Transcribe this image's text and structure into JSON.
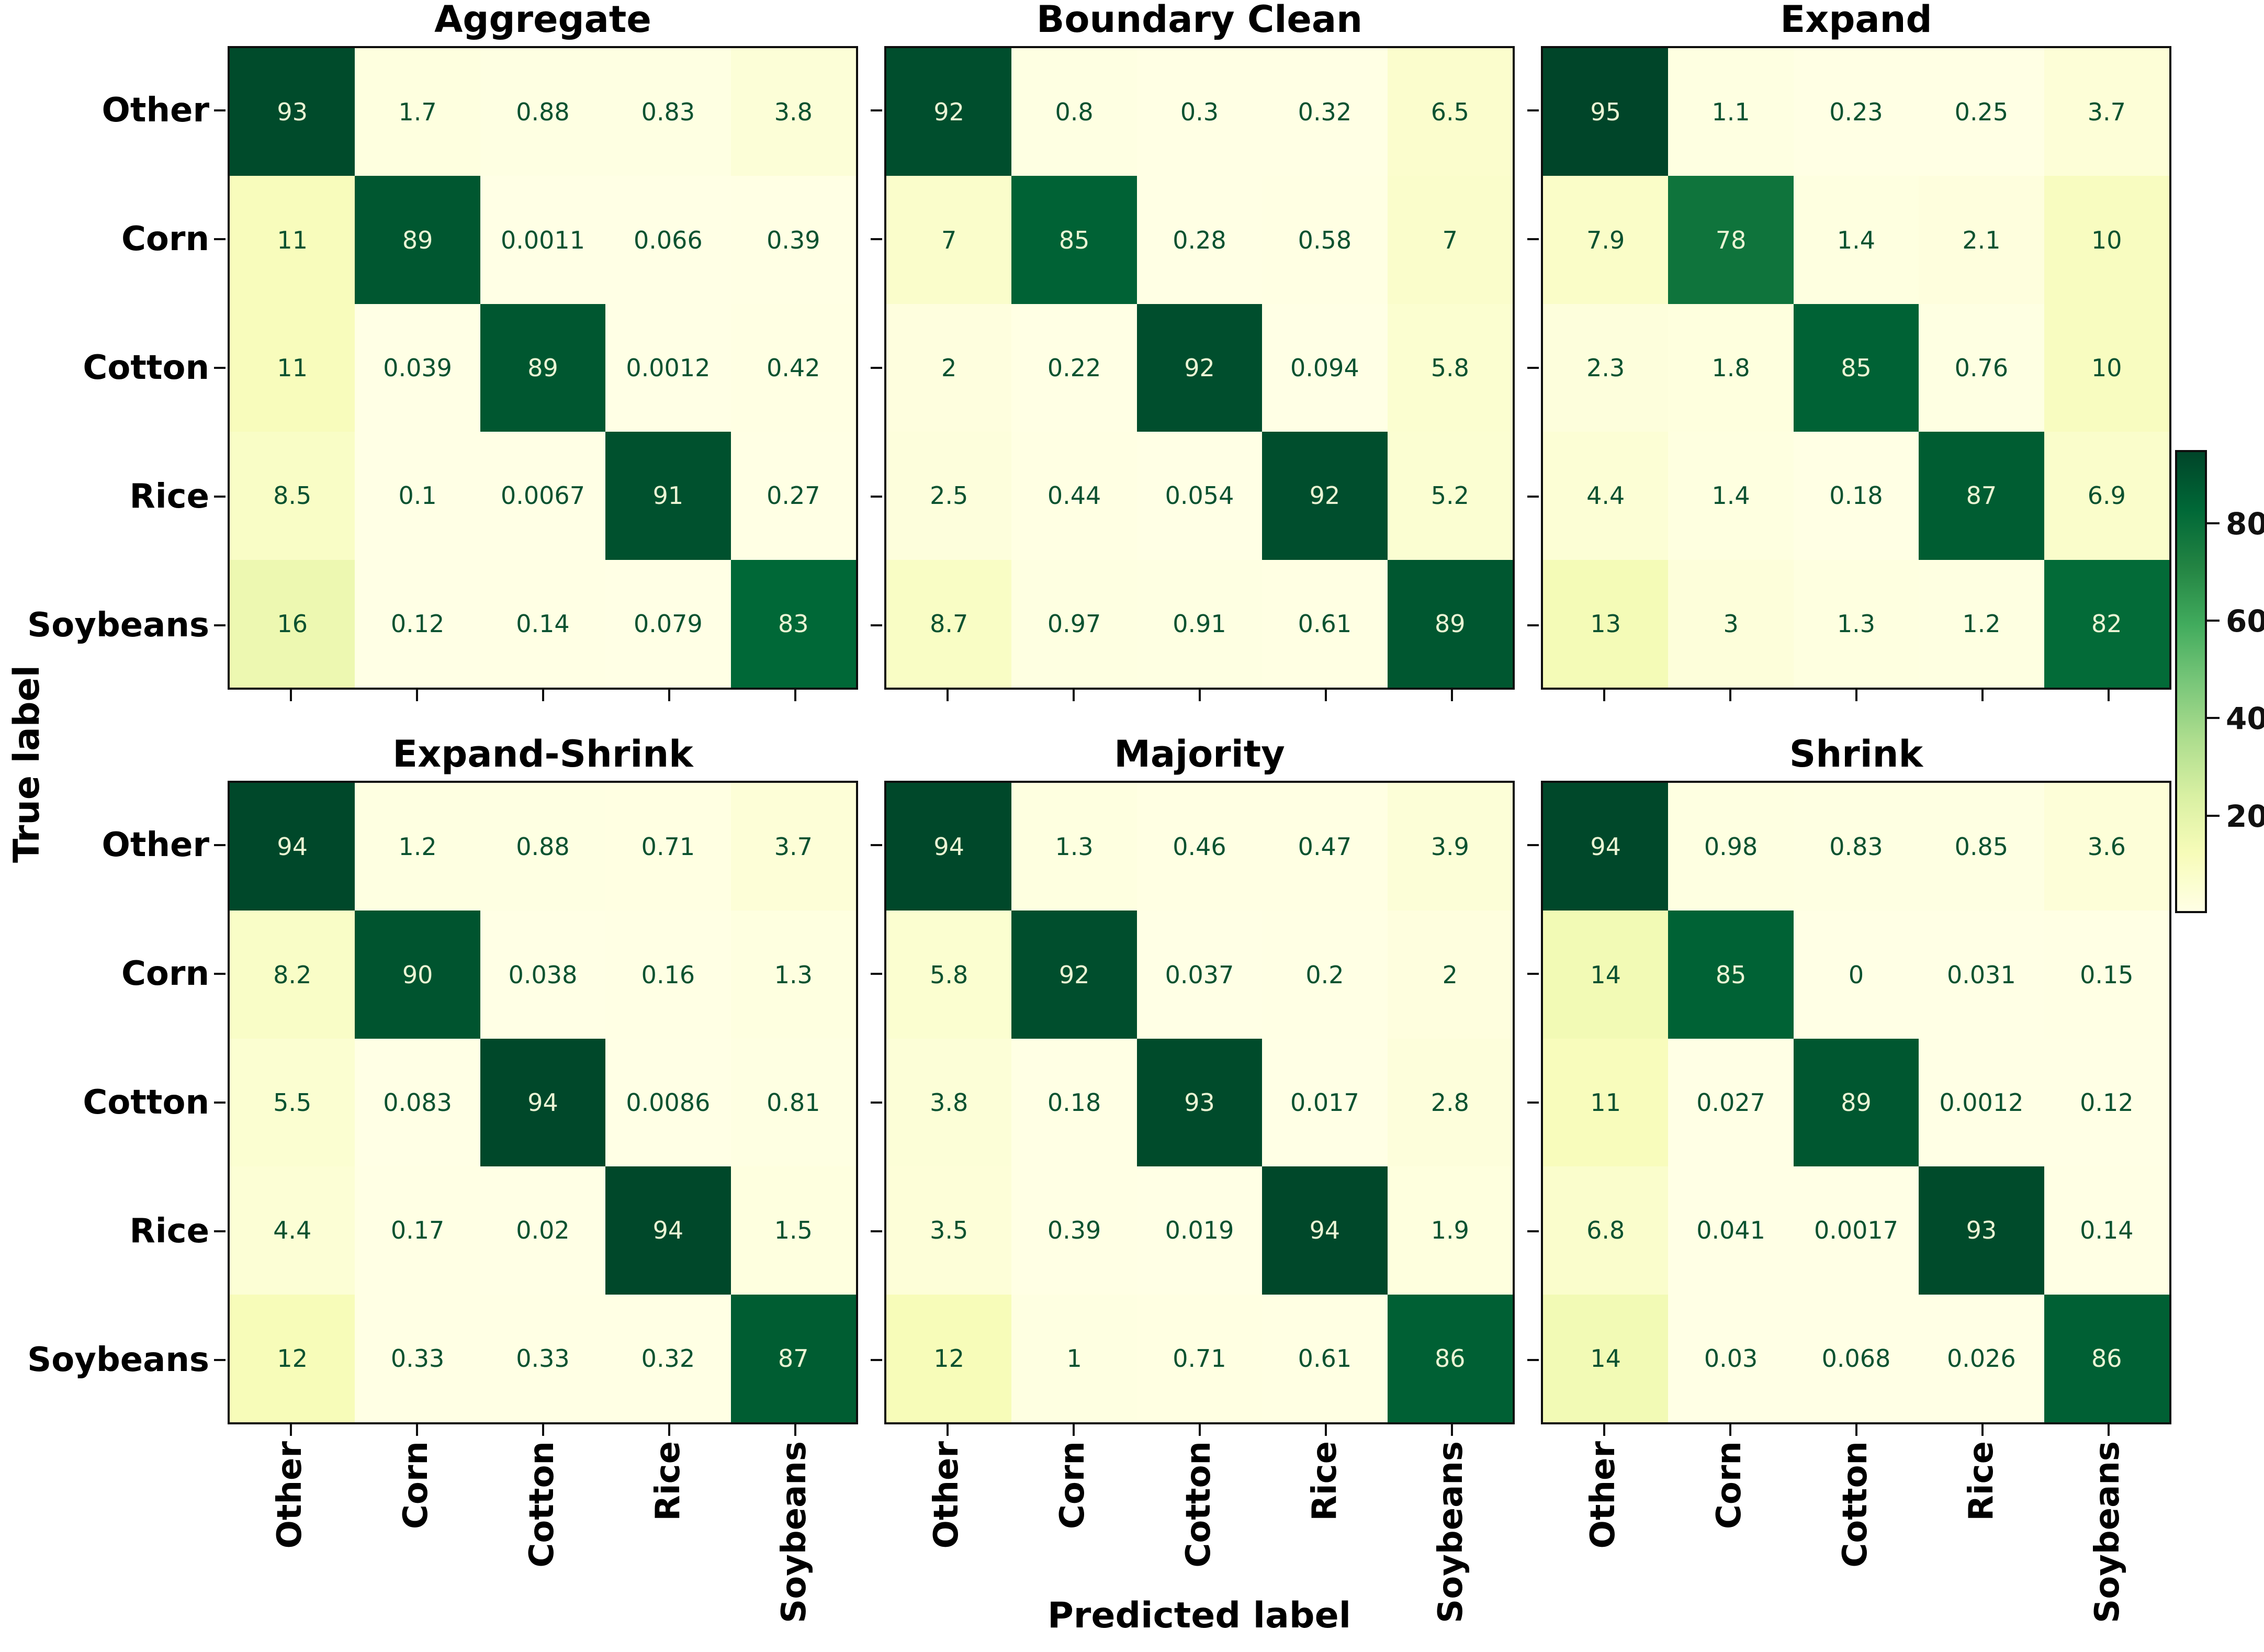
{
  "axis": {
    "xlabel": "Predicted label",
    "ylabel": "True label"
  },
  "chart_data": {
    "type": "heatmap",
    "subtype": "confusion-matrix-grid",
    "categories": [
      "Other",
      "Corn",
      "Cotton",
      "Rice",
      "Soybeans"
    ],
    "x_axis_label": "Predicted label",
    "y_axis_label": "True label",
    "colormap": "YlGn",
    "vmin": 0,
    "vmax": 95,
    "colorbar_ticks": [
      20,
      40,
      60,
      80
    ],
    "legend_position": "right",
    "matrices": [
      {
        "title": "Aggregate",
        "values": [
          [
            "93",
            "1.7",
            "0.88",
            "0.83",
            "3.8"
          ],
          [
            "11",
            "89",
            "0.0011",
            "0.066",
            "0.39"
          ],
          [
            "11",
            "0.039",
            "89",
            "0.0012",
            "0.42"
          ],
          [
            "8.5",
            "0.1",
            "0.0067",
            "91",
            "0.27"
          ],
          [
            "16",
            "0.12",
            "0.14",
            "0.079",
            "83"
          ]
        ]
      },
      {
        "title": "Boundary Clean",
        "values": [
          [
            "92",
            "0.8",
            "0.3",
            "0.32",
            "6.5"
          ],
          [
            "7",
            "85",
            "0.28",
            "0.58",
            "7"
          ],
          [
            "2",
            "0.22",
            "92",
            "0.094",
            "5.8"
          ],
          [
            "2.5",
            "0.44",
            "0.054",
            "92",
            "5.2"
          ],
          [
            "8.7",
            "0.97",
            "0.91",
            "0.61",
            "89"
          ]
        ]
      },
      {
        "title": "Expand",
        "values": [
          [
            "95",
            "1.1",
            "0.23",
            "0.25",
            "3.7"
          ],
          [
            "7.9",
            "78",
            "1.4",
            "2.1",
            "10"
          ],
          [
            "2.3",
            "1.8",
            "85",
            "0.76",
            "10"
          ],
          [
            "4.4",
            "1.4",
            "0.18",
            "87",
            "6.9"
          ],
          [
            "13",
            "3",
            "1.3",
            "1.2",
            "82"
          ]
        ]
      },
      {
        "title": "Expand-Shrink",
        "values": [
          [
            "94",
            "1.2",
            "0.88",
            "0.71",
            "3.7"
          ],
          [
            "8.2",
            "90",
            "0.038",
            "0.16",
            "1.3"
          ],
          [
            "5.5",
            "0.083",
            "94",
            "0.0086",
            "0.81"
          ],
          [
            "4.4",
            "0.17",
            "0.02",
            "94",
            "1.5"
          ],
          [
            "12",
            "0.33",
            "0.33",
            "0.32",
            "87"
          ]
        ]
      },
      {
        "title": "Majority",
        "values": [
          [
            "94",
            "1.3",
            "0.46",
            "0.47",
            "3.9"
          ],
          [
            "5.8",
            "92",
            "0.037",
            "0.2",
            "2"
          ],
          [
            "3.8",
            "0.18",
            "93",
            "0.017",
            "2.8"
          ],
          [
            "3.5",
            "0.39",
            "0.019",
            "94",
            "1.9"
          ],
          [
            "12",
            "1",
            "0.71",
            "0.61",
            "86"
          ]
        ]
      },
      {
        "title": "Shrink",
        "values": [
          [
            "94",
            "0.98",
            "0.83",
            "0.85",
            "3.6"
          ],
          [
            "14",
            "85",
            "0",
            "0.031",
            "0.15"
          ],
          [
            "11",
            "0.027",
            "89",
            "0.0012",
            "0.12"
          ],
          [
            "6.8",
            "0.041",
            "0.0017",
            "93",
            "0.14"
          ],
          [
            "14",
            "0.03",
            "0.068",
            "0.026",
            "86"
          ]
        ]
      }
    ],
    "colors": {
      "colormap_stops": [
        [
          0,
          "#ffffe5"
        ],
        [
          0.125,
          "#f7fcb9"
        ],
        [
          0.25,
          "#d9f0a3"
        ],
        [
          0.375,
          "#addd8e"
        ],
        [
          0.5,
          "#78c679"
        ],
        [
          0.625,
          "#41ab5d"
        ],
        [
          0.75,
          "#238443"
        ],
        [
          0.875,
          "#006837"
        ],
        [
          1,
          "#004529"
        ]
      ],
      "dark_text": "#0a5230",
      "light_text": "#eaf4d4",
      "text_threshold": 47.5,
      "axis_color": "#0e0e0e"
    }
  }
}
